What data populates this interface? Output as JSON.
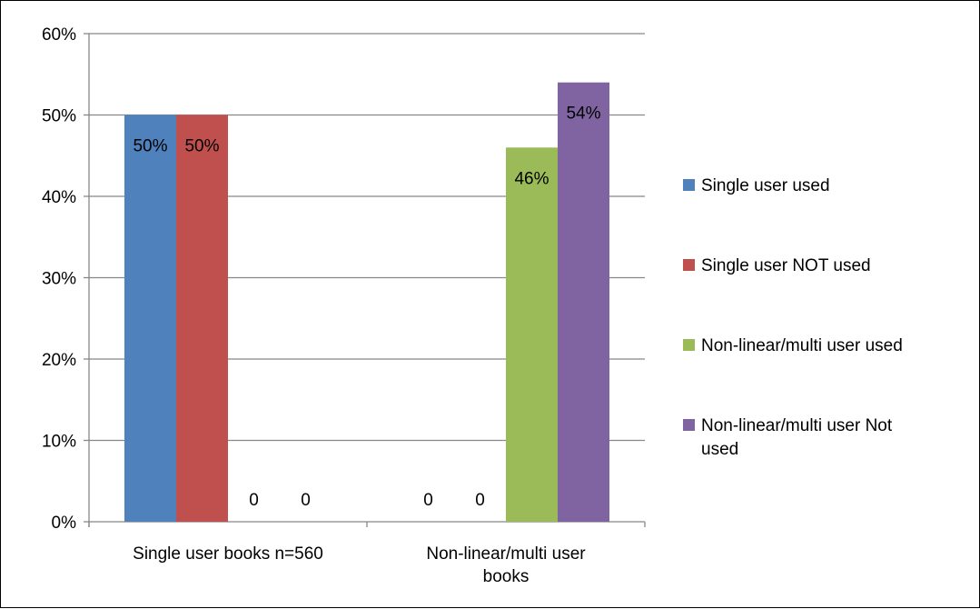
{
  "chart_data": {
    "type": "bar",
    "categories": [
      "Single user books n=560",
      "Non-linear/multi user books"
    ],
    "category_lines": [
      [
        "Single user books n=560"
      ],
      [
        "Non-linear/multi user",
        "books"
      ]
    ],
    "series": [
      {
        "name": "Single user used",
        "values": [
          0.5,
          0
        ],
        "labels": [
          "50%",
          "0"
        ],
        "color": "#4F81BD"
      },
      {
        "name": "Single user NOT used",
        "values": [
          0.5,
          0
        ],
        "labels": [
          "50%",
          "0"
        ],
        "color": "#C0504D"
      },
      {
        "name": "Non-linear/multi user used",
        "values": [
          0,
          0.46
        ],
        "labels": [
          "0",
          "46%"
        ],
        "color": "#9BBB59"
      },
      {
        "name": "Non-linear/multi user Not used",
        "values": [
          0,
          0.54
        ],
        "labels": [
          "0",
          "54%"
        ],
        "color": "#8064A2"
      }
    ],
    "legend_lines": [
      [
        "Single user used"
      ],
      [
        "Single user NOT used"
      ],
      [
        "Non-linear/multi user used"
      ],
      [
        "Non-linear/multi user Not",
        "used"
      ]
    ],
    "ylim": [
      0,
      0.6
    ],
    "yticks": [
      "0%",
      "10%",
      "20%",
      "30%",
      "40%",
      "50%",
      "60%"
    ],
    "grid": true,
    "legend_position": "right"
  }
}
